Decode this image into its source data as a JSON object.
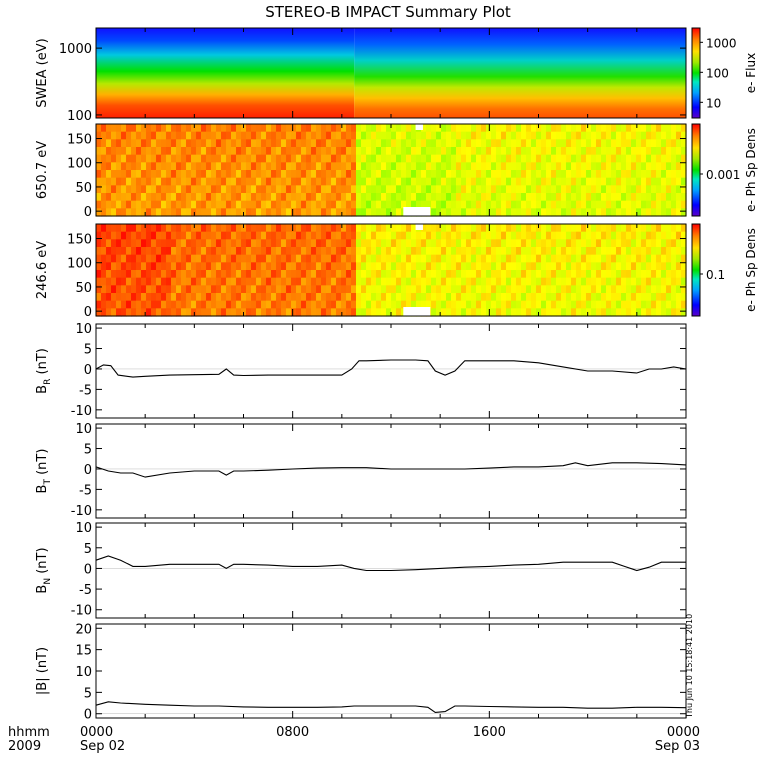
{
  "title": "STEREO-B IMPACT Summary Plot",
  "stamp": "Thu Jun 10 15:18:41 2010",
  "time_axis": {
    "corner_labels": [
      "hhmm",
      "2009"
    ],
    "ticks": [
      {
        "hours": 0,
        "line1": "0000",
        "line2": "Sep 02"
      },
      {
        "hours": 8,
        "line1": "0800",
        "line2": ""
      },
      {
        "hours": 16,
        "line1": "1600",
        "line2": ""
      },
      {
        "hours": 24,
        "line1": "0000",
        "line2": "Sep 03"
      }
    ],
    "range_hours": [
      0,
      24
    ]
  },
  "chart_data": [
    {
      "type": "heatmap",
      "ylabel": "SWEA (eV)",
      "y_scale": "log",
      "ylim": [
        90,
        2000
      ],
      "yticks": [
        {
          "v": 100,
          "t": "100"
        },
        {
          "v": 1000,
          "t": "1000"
        }
      ],
      "colorbar_label": "e- Flux",
      "colorbar_scale": "log",
      "colorbar_ticks": [
        {
          "v": 10,
          "t": "10"
        },
        {
          "v": 100,
          "t": "100"
        },
        {
          "v": 1000,
          "t": "1000"
        }
      ],
      "colorbar_range": [
        3,
        3000
      ]
    },
    {
      "type": "heatmap",
      "ylabel": "650.7 eV",
      "ylim": [
        -10,
        180
      ],
      "yticks": [
        {
          "v": 0,
          "t": "0"
        },
        {
          "v": 50,
          "t": "50"
        },
        {
          "v": 100,
          "t": "100"
        },
        {
          "v": 150,
          "t": "150"
        }
      ],
      "colorbar_label": "e- Ph Sp Dens",
      "colorbar_ticks": [
        {
          "v": 0.001,
          "t": "0.001"
        }
      ]
    },
    {
      "type": "heatmap",
      "ylabel": "246.6 eV",
      "ylim": [
        -10,
        180
      ],
      "yticks": [
        {
          "v": 0,
          "t": "0"
        },
        {
          "v": 50,
          "t": "50"
        },
        {
          "v": 100,
          "t": "100"
        },
        {
          "v": 150,
          "t": "150"
        }
      ],
      "colorbar_label": "e- Ph Sp Dens",
      "colorbar_ticks": [
        {
          "v": 0.1,
          "t": "0.1"
        }
      ]
    },
    {
      "type": "line",
      "ylabel": "B",
      "ylabel_sub": "R",
      "ylabel_unit": " (nT)",
      "ylim": [
        -12,
        11
      ],
      "yticks": [
        {
          "v": -10,
          "t": "-10"
        },
        {
          "v": -5,
          "t": "-5"
        },
        {
          "v": 0,
          "t": "0"
        },
        {
          "v": 5,
          "t": "5"
        },
        {
          "v": 10,
          "t": "10"
        }
      ],
      "x": [
        0,
        0.3,
        0.6,
        0.9,
        1.5,
        2,
        3,
        4,
        5,
        5.3,
        5.6,
        6,
        7,
        8,
        9,
        10,
        10.4,
        10.7,
        11,
        12,
        13,
        13.5,
        13.8,
        14.2,
        14.6,
        15,
        16,
        17,
        18,
        19,
        20,
        21,
        22,
        22.5,
        23,
        23.5,
        24
      ],
      "y": [
        0,
        1,
        0.8,
        -1.5,
        -2,
        -1.8,
        -1.5,
        -1.4,
        -1.3,
        0,
        -1.5,
        -1.6,
        -1.5,
        -1.5,
        -1.5,
        -1.5,
        0,
        2,
        2,
        2.2,
        2.2,
        2,
        -0.5,
        -1.5,
        -0.5,
        2,
        2,
        2,
        1.5,
        0.5,
        -0.5,
        -0.5,
        -1,
        0,
        0,
        0.5,
        0
      ]
    },
    {
      "type": "line",
      "ylabel": "B",
      "ylabel_sub": "T",
      "ylabel_unit": " (nT)",
      "ylim": [
        -12,
        11
      ],
      "yticks": [
        {
          "v": -10,
          "t": "-10"
        },
        {
          "v": -5,
          "t": "-5"
        },
        {
          "v": 0,
          "t": "0"
        },
        {
          "v": 5,
          "t": "5"
        },
        {
          "v": 10,
          "t": "10"
        }
      ],
      "x": [
        0,
        0.5,
        1,
        1.5,
        2,
        3,
        4,
        5,
        5.3,
        5.6,
        6,
        7,
        8,
        9,
        10,
        11,
        12,
        13,
        14,
        15,
        16,
        17,
        18,
        19,
        19.5,
        20,
        21,
        22,
        23,
        24
      ],
      "y": [
        0.5,
        -0.5,
        -1,
        -1,
        -2,
        -1,
        -0.5,
        -0.5,
        -1.5,
        -0.5,
        -0.5,
        -0.3,
        0,
        0.2,
        0.3,
        0.3,
        0,
        0,
        0,
        0,
        0.2,
        0.5,
        0.5,
        0.8,
        1.5,
        0.8,
        1.5,
        1.5,
        1.3,
        1
      ]
    },
    {
      "type": "line",
      "ylabel": "B",
      "ylabel_sub": "N",
      "ylabel_unit": " (nT)",
      "ylim": [
        -12,
        11
      ],
      "yticks": [
        {
          "v": -10,
          "t": "-10"
        },
        {
          "v": -5,
          "t": "-5"
        },
        {
          "v": 0,
          "t": "0"
        },
        {
          "v": 5,
          "t": "5"
        },
        {
          "v": 10,
          "t": "10"
        }
      ],
      "x": [
        0,
        0.5,
        1,
        1.5,
        2,
        3,
        4,
        5,
        5.3,
        5.6,
        6,
        7,
        8,
        9,
        10,
        10.5,
        11,
        12,
        13,
        14,
        15,
        16,
        17,
        18,
        19,
        20,
        21,
        21.5,
        22,
        22.5,
        23,
        24
      ],
      "y": [
        2,
        3,
        2,
        0.5,
        0.5,
        1,
        1,
        1,
        0,
        1,
        1,
        0.8,
        0.5,
        0.5,
        0.8,
        0,
        -0.5,
        -0.5,
        -0.3,
        0,
        0.3,
        0.5,
        0.8,
        1,
        1.5,
        1.5,
        1.5,
        0.5,
        -0.5,
        0.3,
        1.5,
        1.5
      ]
    },
    {
      "type": "line",
      "ylabel": "|B|",
      "ylabel_sub": "",
      "ylabel_unit": " (nT)",
      "ylim": [
        -1,
        21
      ],
      "yticks": [
        {
          "v": 0,
          "t": "0"
        },
        {
          "v": 5,
          "t": "5"
        },
        {
          "v": 10,
          "t": "10"
        },
        {
          "v": 15,
          "t": "15"
        },
        {
          "v": 20,
          "t": "20"
        }
      ],
      "x": [
        0,
        0.5,
        1,
        2,
        3,
        4,
        5,
        6,
        7,
        8,
        9,
        10,
        10.5,
        11,
        12,
        13,
        13.5,
        13.8,
        14.2,
        14.6,
        15,
        16,
        17,
        18,
        19,
        20,
        21,
        22,
        23,
        24
      ],
      "y": [
        2,
        2.8,
        2.5,
        2.2,
        2,
        1.8,
        1.8,
        1.6,
        1.5,
        1.5,
        1.5,
        1.6,
        1.8,
        1.8,
        1.8,
        1.8,
        1.5,
        0.3,
        0.5,
        1.8,
        1.8,
        1.7,
        1.6,
        1.5,
        1.5,
        1.3,
        1.3,
        1.5,
        1.5,
        1.4
      ]
    }
  ]
}
